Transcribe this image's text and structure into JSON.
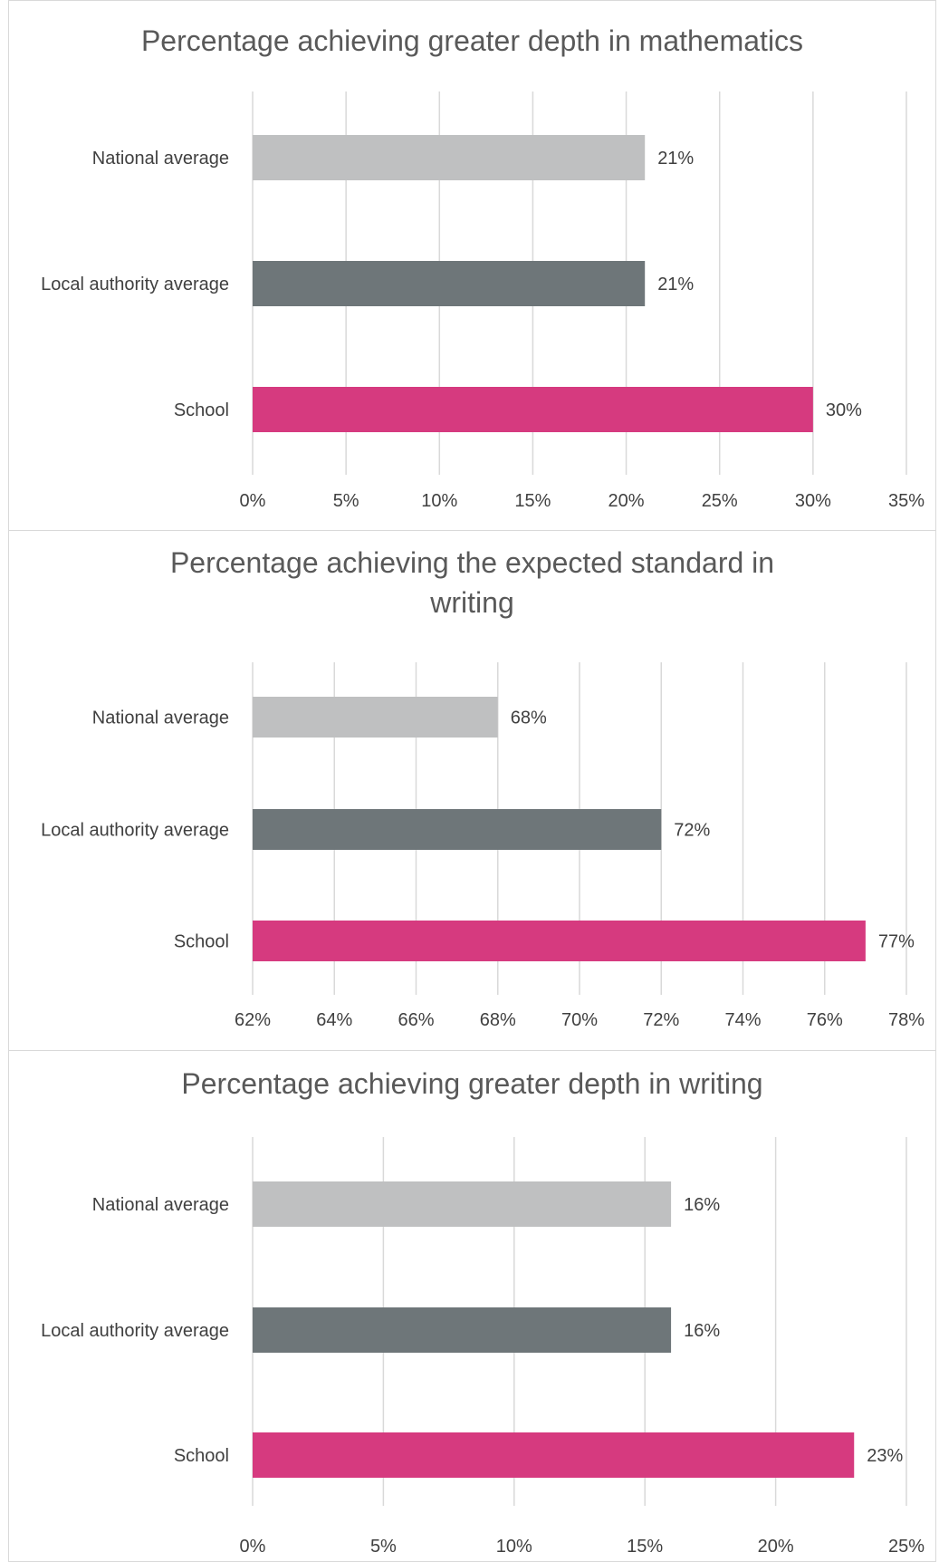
{
  "chart_data": [
    {
      "type": "bar",
      "orientation": "horizontal",
      "title": "Percentage achieving greater depth in mathematics",
      "categories": [
        "National average",
        "Local authority average",
        "School"
      ],
      "values": [
        21,
        21,
        30
      ],
      "data_labels": [
        "21%",
        "21%",
        "30%"
      ],
      "colors": [
        "#bfc0c1",
        "#6e7679",
        "#d63a7f"
      ],
      "xlim": [
        0,
        35
      ],
      "xticks": [
        "0%",
        "5%",
        "10%",
        "15%",
        "20%",
        "25%",
        "30%",
        "35%"
      ],
      "grid": true,
      "legend": "none"
    },
    {
      "type": "bar",
      "orientation": "horizontal",
      "title": "Percentage achieving the expected standard in writing",
      "categories": [
        "National average",
        "Local authority average",
        "School"
      ],
      "values": [
        68,
        72,
        77
      ],
      "data_labels": [
        "68%",
        "72%",
        "77%"
      ],
      "colors": [
        "#bfc0c1",
        "#6e7679",
        "#d63a7f"
      ],
      "xlim": [
        62,
        78
      ],
      "xticks": [
        "62%",
        "64%",
        "66%",
        "68%",
        "70%",
        "72%",
        "74%",
        "76%",
        "78%"
      ],
      "grid": true,
      "legend": "none"
    },
    {
      "type": "bar",
      "orientation": "horizontal",
      "title": "Percentage achieving greater depth in writing",
      "categories": [
        "National average",
        "Local authority average",
        "School"
      ],
      "values": [
        16,
        16,
        23
      ],
      "data_labels": [
        "16%",
        "16%",
        "23%"
      ],
      "colors": [
        "#bfc0c1",
        "#6e7679",
        "#d63a7f"
      ],
      "xlim": [
        0,
        25
      ],
      "xticks": [
        "0%",
        "5%",
        "10%",
        "15%",
        "20%",
        "25%"
      ],
      "grid": true,
      "legend": "none"
    }
  ]
}
